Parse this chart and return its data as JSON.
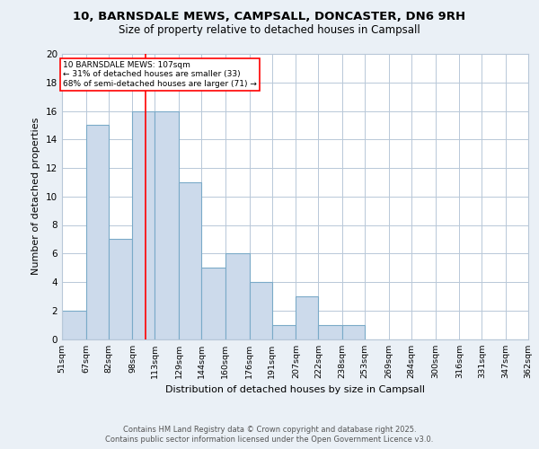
{
  "title_line1": "10, BARNSDALE MEWS, CAMPSALL, DONCASTER, DN6 9RH",
  "title_line2": "Size of property relative to detached houses in Campsall",
  "xlabel": "Distribution of detached houses by size in Campsall",
  "ylabel": "Number of detached properties",
  "bin_labels": [
    "51sqm",
    "67sqm",
    "82sqm",
    "98sqm",
    "113sqm",
    "129sqm",
    "144sqm",
    "160sqm",
    "176sqm",
    "191sqm",
    "207sqm",
    "222sqm",
    "238sqm",
    "253sqm",
    "269sqm",
    "284sqm",
    "300sqm",
    "316sqm",
    "331sqm",
    "347sqm",
    "362sqm"
  ],
  "bin_edges": [
    51,
    67,
    82,
    98,
    113,
    129,
    144,
    160,
    176,
    191,
    207,
    222,
    238,
    253,
    269,
    284,
    300,
    316,
    331,
    347,
    362
  ],
  "bar_heights": [
    2,
    15,
    7,
    16,
    16,
    11,
    5,
    6,
    4,
    1,
    3,
    1,
    1,
    0,
    0,
    0,
    0,
    0,
    0,
    0
  ],
  "bar_color": "#ccdaeb",
  "bar_edge_color": "#7aaac8",
  "property_value": 107,
  "red_line_x": 107,
  "annotation_text": "10 BARNSDALE MEWS: 107sqm\n← 31% of detached houses are smaller (33)\n68% of semi-detached houses are larger (71) →",
  "annotation_box_color": "white",
  "annotation_box_edge_color": "red",
  "ylim": [
    0,
    20
  ],
  "yticks": [
    0,
    2,
    4,
    6,
    8,
    10,
    12,
    14,
    16,
    18,
    20
  ],
  "footer_text": "Contains HM Land Registry data © Crown copyright and database right 2025.\nContains public sector information licensed under the Open Government Licence v3.0.",
  "background_color": "#eaf0f6",
  "plot_background_color": "#ffffff",
  "grid_color": "#b8c8d8"
}
